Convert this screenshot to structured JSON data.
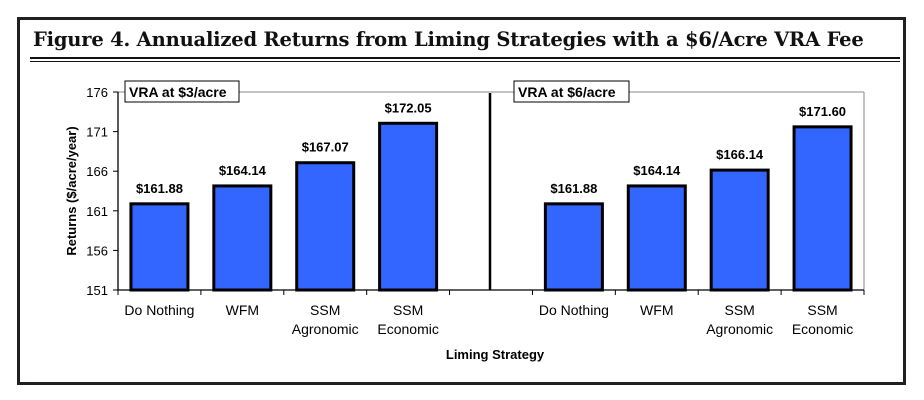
{
  "title": "Figure 4. Annualized Returns from Liming Strategies with a $6/Acre VRA Fee",
  "chart_data": {
    "type": "bar",
    "xlabel": "Liming Strategy",
    "ylabel": "Returns ($/acre/year)",
    "ylim": [
      151,
      176
    ],
    "yticks": [
      151,
      156,
      161,
      166,
      171,
      176
    ],
    "grid": false,
    "bar_color": "#3366ff",
    "panels": [
      {
        "label": "VRA at $3/acre",
        "categories": [
          [
            "Do Nothing"
          ],
          [
            "WFM"
          ],
          [
            "SSM",
            "Agronomic"
          ],
          [
            "SSM",
            "Economic"
          ]
        ],
        "values": [
          161.88,
          164.14,
          167.07,
          172.05
        ],
        "data_labels": [
          "$161.88",
          "$164.14",
          "$167.07",
          "$172.05"
        ]
      },
      {
        "label": "VRA at $6/acre",
        "categories": [
          [
            "Do Nothing"
          ],
          [
            "WFM"
          ],
          [
            "SSM",
            "Agronomic"
          ],
          [
            "SSM",
            "Economic"
          ]
        ],
        "values": [
          161.88,
          164.14,
          166.14,
          171.6
        ],
        "data_labels": [
          "$161.88",
          "$164.14",
          "$166.14",
          "$171.60"
        ]
      }
    ]
  }
}
